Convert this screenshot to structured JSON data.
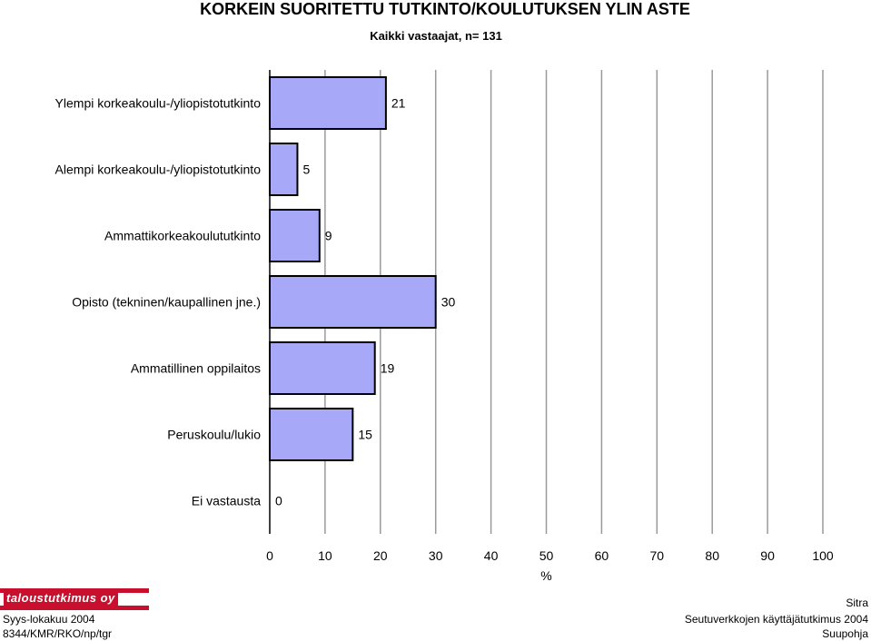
{
  "chart_data": {
    "type": "bar",
    "orientation": "horizontal",
    "title": "KORKEIN SUORITETTU TUTKINTO/KOULUTUKSEN YLIN ASTE",
    "subtitle": "Kaikki vastaajat, n= 131",
    "categories": [
      "Ylempi korkeakoulu-/yliopistotutkinto",
      "Alempi korkeakoulu-/yliopistotutkinto",
      "Ammattikorkeakoulututkinto",
      "Opisto (tekninen/kaupallinen jne.)",
      "Ammatillinen oppilaitos",
      "Peruskoulu/lukio",
      "Ei vastausta"
    ],
    "values": [
      21,
      5,
      9,
      30,
      19,
      15,
      0
    ],
    "data_labels": [
      "21",
      "5",
      "9",
      "30",
      "19",
      "15",
      "0"
    ],
    "xlabel": "%",
    "xlim": [
      0,
      100
    ],
    "xticks": [
      "0",
      "10",
      "20",
      "30",
      "40",
      "50",
      "60",
      "70",
      "80",
      "90",
      "100"
    ],
    "grid": true,
    "bar_color": "#a8a8f8",
    "bar_edge_color": "#000000",
    "grid_color": "#9a9a9a"
  },
  "logo": {
    "text": "taloustutkimus oy",
    "color": "#c8102e"
  },
  "footer": {
    "left_top": "Syys-lokakuu 2004",
    "left_bottom": "8344/KMR/RKO/np/tgr",
    "right_top": "Sitra",
    "right_middle": "Seutuverkkojen käyttäjätutkimus 2004",
    "right_bottom": "Suupohja"
  }
}
